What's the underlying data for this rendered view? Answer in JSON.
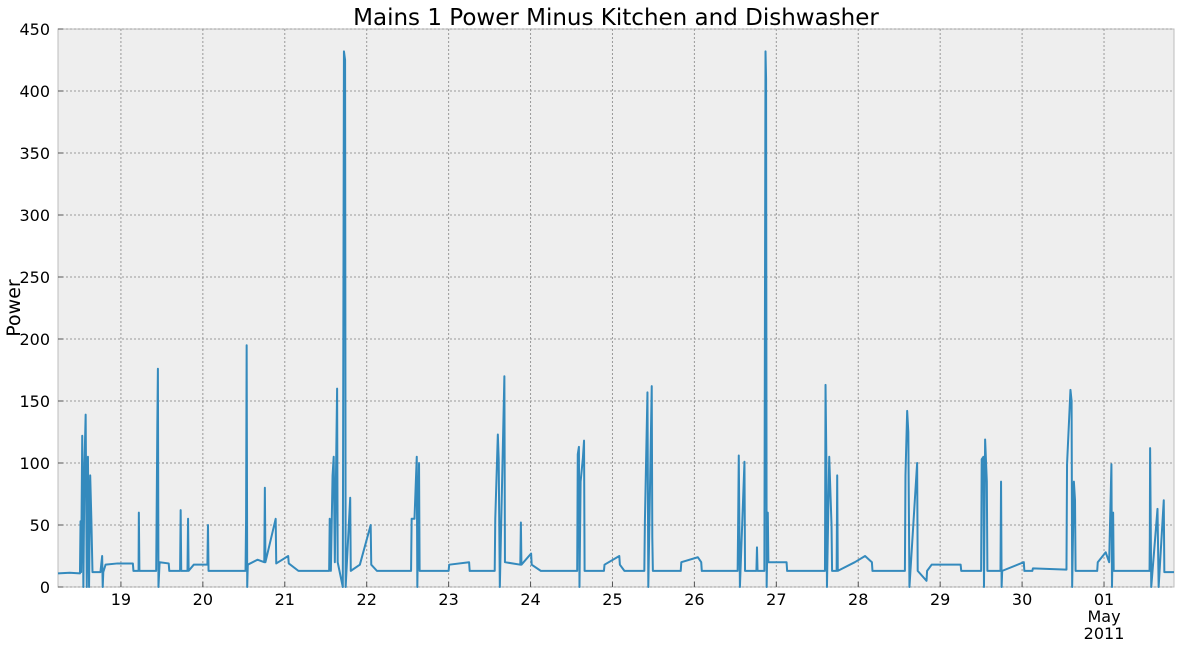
{
  "chart_data": {
    "type": "line",
    "title": "Mains 1 Power Minus Kitchen and Dishwasher",
    "y_label": "Power",
    "color": "#348abd",
    "grid": true,
    "ylim": [
      0,
      450
    ],
    "yticks": [
      0,
      50,
      100,
      150,
      200,
      250,
      300,
      350,
      400,
      450
    ],
    "xlim": [
      "2011-04-18T05:34",
      "2011-05-01T20:30"
    ],
    "xticks": [
      {
        "value": "2011-04-19T00:00",
        "label": "19"
      },
      {
        "value": "2011-04-20T00:00",
        "label": "20"
      },
      {
        "value": "2011-04-21T00:00",
        "label": "21"
      },
      {
        "value": "2011-04-22T00:00",
        "label": "22"
      },
      {
        "value": "2011-04-23T00:00",
        "label": "23"
      },
      {
        "value": "2011-04-24T00:00",
        "label": "24"
      },
      {
        "value": "2011-04-25T00:00",
        "label": "25"
      },
      {
        "value": "2011-04-26T00:00",
        "label": "26"
      },
      {
        "value": "2011-04-27T00:00",
        "label": "27"
      },
      {
        "value": "2011-04-28T00:00",
        "label": "28"
      },
      {
        "value": "2011-04-29T00:00",
        "label": "29"
      },
      {
        "value": "2011-04-30T00:00",
        "label": "30"
      },
      {
        "value": "2011-05-01T00:00",
        "label": "01\nMay\n2011"
      }
    ],
    "x": [
      "2011-04-18T05:34",
      "2011-04-18T09:00",
      "2011-04-18T12:00",
      "2011-04-18T12:10",
      "2011-04-18T12:20",
      "2011-04-18T12:40",
      "2011-04-18T13:00",
      "2011-04-18T13:20",
      "2011-04-18T13:40",
      "2011-04-18T14:00",
      "2011-04-18T14:20",
      "2011-04-18T14:40",
      "2011-04-18T15:00",
      "2011-04-18T15:20",
      "2011-04-18T15:40",
      "2011-04-18T18:00",
      "2011-04-18T18:30",
      "2011-04-18T18:40",
      "2011-04-18T18:50",
      "2011-04-18T19:30",
      "2011-04-18T23:00",
      "2011-04-19T03:30",
      "2011-04-19T03:40",
      "2011-04-19T05:10",
      "2011-04-19T05:15",
      "2011-04-19T05:25",
      "2011-04-19T10:20",
      "2011-04-19T10:40",
      "2011-04-19T10:50",
      "2011-04-19T11:00",
      "2011-04-19T11:20",
      "2011-04-19T14:00",
      "2011-04-19T14:10",
      "2011-04-19T17:20",
      "2011-04-19T17:30",
      "2011-04-19T17:40",
      "2011-04-19T19:30",
      "2011-04-19T19:40",
      "2011-04-19T19:50",
      "2011-04-19T21:20",
      "2011-04-20T01:20",
      "2011-04-20T01:30",
      "2011-04-20T01:40",
      "2011-04-20T12:30",
      "2011-04-20T12:40",
      "2011-04-20T12:50",
      "2011-04-20T13:00",
      "2011-04-20T13:10",
      "2011-04-20T16:00",
      "2011-04-20T18:00",
      "2011-04-20T18:10",
      "2011-04-20T18:20",
      "2011-04-20T21:20",
      "2011-04-20T21:30",
      "2011-04-21T01:00",
      "2011-04-21T01:10",
      "2011-04-21T04:00",
      "2011-04-21T13:00",
      "2011-04-21T13:10",
      "2011-04-21T13:30",
      "2011-04-21T14:00",
      "2011-04-21T14:20",
      "2011-04-21T14:40",
      "2011-04-21T15:20",
      "2011-04-21T15:30",
      "2011-04-21T17:00",
      "2011-04-21T17:20",
      "2011-04-21T17:40",
      "2011-04-21T17:50",
      "2011-04-21T18:10",
      "2011-04-21T19:10",
      "2011-04-21T19:20",
      "2011-04-21T22:00",
      "2011-04-22T01:10",
      "2011-04-22T01:20",
      "2011-04-22T03:00",
      "2011-04-22T13:00",
      "2011-04-22T13:10",
      "2011-04-22T14:00",
      "2011-04-22T14:40",
      "2011-04-22T14:50",
      "2011-04-22T15:20",
      "2011-04-22T15:30",
      "2011-04-23T00:00",
      "2011-04-23T00:10",
      "2011-04-23T06:00",
      "2011-04-23T06:10",
      "2011-04-23T13:30",
      "2011-04-23T13:40",
      "2011-04-23T14:25",
      "2011-04-23T14:40",
      "2011-04-23T15:00",
      "2011-04-23T16:20",
      "2011-04-23T16:30",
      "2011-04-23T21:00",
      "2011-04-23T21:10",
      "2011-04-23T21:20",
      "2011-04-24T00:10",
      "2011-04-24T00:20",
      "2011-04-24T03:00",
      "2011-04-24T13:40",
      "2011-04-24T13:50",
      "2011-04-24T14:10",
      "2011-04-24T14:20",
      "2011-04-24T14:40",
      "2011-04-24T15:20",
      "2011-04-24T15:40",
      "2011-04-24T15:50",
      "2011-04-24T21:30",
      "2011-04-24T21:40",
      "2011-04-25T02:00",
      "2011-04-25T02:10",
      "2011-04-25T03:30",
      "2011-04-25T09:20",
      "2011-04-25T09:30",
      "2011-04-25T10:15",
      "2011-04-25T10:30",
      "2011-04-25T11:30",
      "2011-04-25T11:40",
      "2011-04-25T11:50",
      "2011-04-25T20:00",
      "2011-04-25T20:10",
      "2011-04-26T01:00",
      "2011-04-26T02:00",
      "2011-04-26T02:10",
      "2011-04-26T12:40",
      "2011-04-26T12:50",
      "2011-04-26T13:00",
      "2011-04-26T13:20",
      "2011-04-26T14:40",
      "2011-04-26T14:50",
      "2011-04-26T18:10",
      "2011-04-26T18:20",
      "2011-04-26T18:30",
      "2011-04-26T20:30",
      "2011-04-26T20:50",
      "2011-04-26T21:00",
      "2011-04-26T21:10",
      "2011-04-26T21:30",
      "2011-04-26T21:40",
      "2011-04-27T03:00",
      "2011-04-27T03:10",
      "2011-04-27T14:15",
      "2011-04-27T14:25",
      "2011-04-27T14:40",
      "2011-04-27T14:50",
      "2011-04-27T15:30",
      "2011-04-27T16:10",
      "2011-04-27T16:20",
      "2011-04-27T17:40",
      "2011-04-27T17:50",
      "2011-04-27T18:00",
      "2011-04-27T23:00",
      "2011-04-28T02:00",
      "2011-04-28T04:00",
      "2011-04-28T04:10",
      "2011-04-28T13:40",
      "2011-04-28T13:50",
      "2011-04-28T14:20",
      "2011-04-28T14:40",
      "2011-04-28T15:00",
      "2011-04-28T17:15",
      "2011-04-28T17:25",
      "2011-04-28T20:00",
      "2011-04-28T20:10",
      "2011-04-28T21:30",
      "2011-04-29T06:00",
      "2011-04-29T06:10",
      "2011-04-29T12:00",
      "2011-04-29T12:10",
      "2011-04-29T12:40",
      "2011-04-29T12:50",
      "2011-04-29T13:10",
      "2011-04-29T13:40",
      "2011-04-29T13:50",
      "2011-04-29T17:40",
      "2011-04-29T17:50",
      "2011-04-29T18:00",
      "2011-04-29T18:10",
      "2011-04-30T00:30",
      "2011-04-30T00:40",
      "2011-04-30T03:00",
      "2011-04-30T03:10",
      "2011-04-30T13:00",
      "2011-04-30T13:10",
      "2011-04-30T14:10",
      "2011-04-30T14:30",
      "2011-04-30T14:40",
      "2011-04-30T15:10",
      "2011-04-30T15:30",
      "2011-04-30T15:40",
      "2011-04-30T22:00",
      "2011-04-30T22:10",
      "2011-05-01T00:30",
      "2011-05-01T01:30",
      "2011-05-01T02:10",
      "2011-05-01T02:20",
      "2011-05-01T02:40",
      "2011-05-01T02:50",
      "2011-05-01T13:20",
      "2011-05-01T13:25",
      "2011-05-01T13:30",
      "2011-05-01T13:50",
      "2011-05-01T15:40",
      "2011-05-01T16:00",
      "2011-05-01T17:30",
      "2011-05-01T17:40",
      "2011-05-01T20:30"
    ],
    "values": [
      11,
      11.5,
      11,
      53,
      12,
      122,
      0,
      100,
      139,
      0,
      105,
      0,
      90,
      55,
      12,
      12,
      25,
      0,
      12,
      18,
      19,
      19,
      13,
      13,
      60,
      13,
      13,
      130,
      176,
      0,
      20,
      19,
      13,
      13,
      62,
      13,
      13,
      55,
      13,
      18,
      18,
      50,
      13,
      13,
      55,
      195,
      0,
      18,
      22,
      20,
      80,
      20,
      55,
      19,
      25,
      19,
      13,
      13,
      55,
      13,
      90,
      105,
      20,
      160,
      20,
      0,
      432,
      425,
      0,
      18,
      72,
      13,
      18,
      50,
      18,
      13,
      13,
      55,
      55,
      105,
      0,
      100,
      13,
      13,
      18,
      20,
      13,
      13,
      55,
      123,
      103,
      0,
      170,
      20,
      18,
      52,
      18,
      27,
      18,
      13,
      13,
      107,
      113,
      0,
      85,
      104,
      118,
      13,
      13,
      18,
      25,
      18,
      13,
      13,
      53,
      157,
      0,
      162,
      40,
      13,
      13,
      20,
      24,
      20,
      13,
      13,
      55,
      106,
      0,
      101,
      13,
      13,
      32,
      13,
      13,
      432,
      410,
      0,
      60,
      20,
      20,
      13,
      13,
      163,
      100,
      0,
      105,
      50,
      13,
      13,
      90,
      13,
      20,
      25,
      20,
      13,
      13,
      90,
      142,
      125,
      0,
      100,
      13,
      5,
      13,
      18,
      18,
      13,
      13,
      103,
      105,
      0,
      119,
      85,
      13,
      13,
      85,
      0,
      13,
      20,
      13,
      13,
      15,
      14,
      99,
      159,
      150,
      0,
      85,
      70,
      13,
      13,
      20,
      28,
      20,
      99,
      0,
      60,
      13,
      13,
      40,
      112,
      0,
      63,
      0,
      70,
      12,
      12
    ]
  }
}
